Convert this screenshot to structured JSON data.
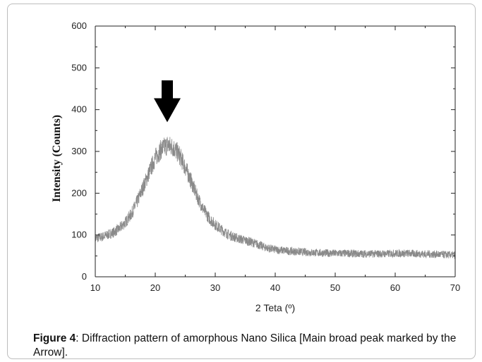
{
  "caption": {
    "label": "Figure 4",
    "text": ": Diffraction pattern of amorphous Nano Silica [Main broad peak marked by the Arrow]."
  },
  "chart_data": {
    "type": "line",
    "title": "",
    "xlabel": "2 Teta (º)",
    "ylabel": "Intensity (Counts)",
    "xlim": [
      10,
      70
    ],
    "ylim": [
      0,
      600
    ],
    "xticks": [
      10,
      20,
      30,
      40,
      50,
      60,
      70
    ],
    "yticks": [
      0,
      100,
      200,
      300,
      400,
      500,
      600
    ],
    "line_color": "#8a8a8a",
    "grid": false,
    "legend": "none",
    "annotations": [
      {
        "type": "arrow-down",
        "x": 22.0,
        "y_tip": 370,
        "y_tail": 470,
        "color": "#000000"
      }
    ],
    "series": [
      {
        "x": [
          10,
          11,
          12,
          13,
          14,
          15,
          16,
          17,
          18,
          19,
          20,
          21,
          22,
          23,
          24,
          25,
          26,
          27,
          28,
          29,
          30,
          31,
          32,
          33,
          34,
          35,
          36,
          37,
          38,
          39,
          40,
          42,
          44,
          46,
          48,
          50,
          52,
          54,
          56,
          58,
          60,
          62,
          64,
          66,
          68,
          70
        ],
        "values": [
          92,
          95,
          100,
          106,
          115,
          130,
          150,
          180,
          215,
          250,
          285,
          305,
          315,
          310,
          292,
          262,
          228,
          192,
          162,
          140,
          125,
          113,
          103,
          96,
          91,
          87,
          83,
          78,
          72,
          68,
          65,
          62,
          60,
          58,
          57,
          56,
          56,
          55,
          55,
          55,
          56,
          56,
          55,
          54,
          53,
          52
        ]
      }
    ]
  }
}
